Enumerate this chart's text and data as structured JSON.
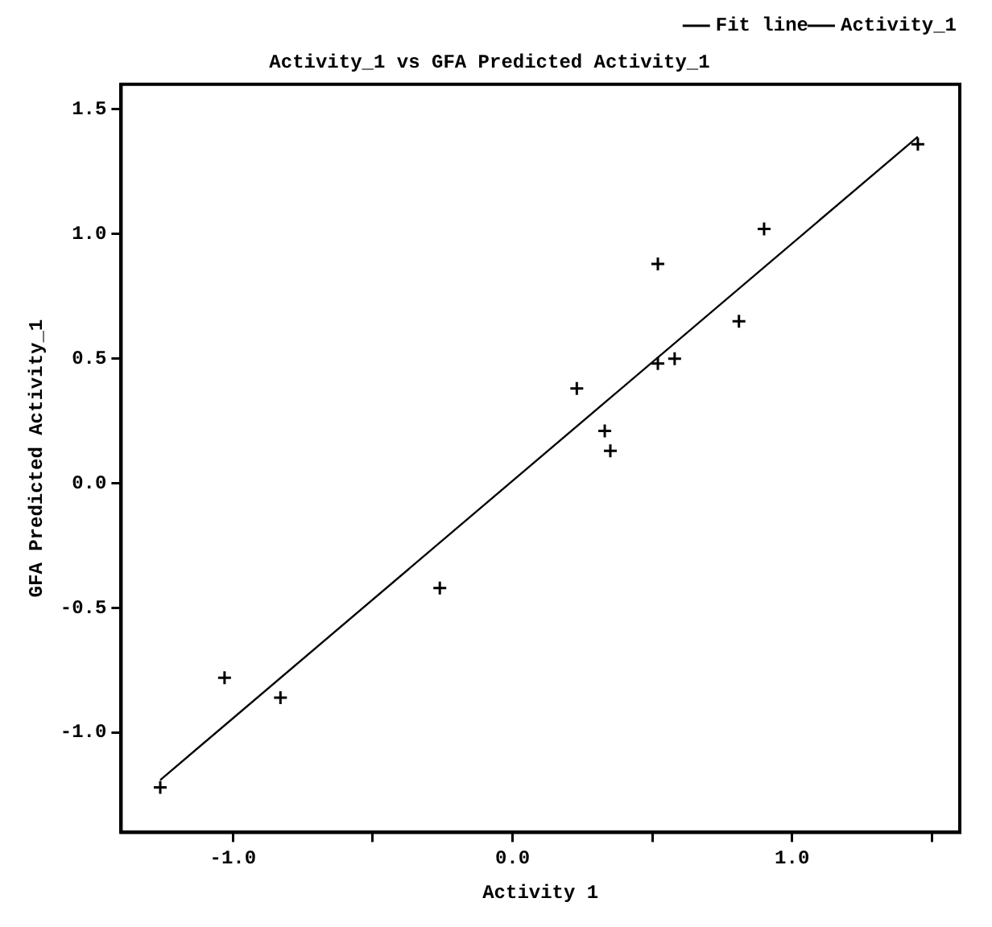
{
  "chart_data": {
    "type": "scatter",
    "title": "Activity_1 vs GFA Predicted Activity_1",
    "xlabel": "Activity 1",
    "ylabel": "GFA Predicted Activity_1",
    "series": [
      {
        "name": "Fit line",
        "type": "line",
        "marker": "none",
        "color": "#000000",
        "x": [
          -1.26,
          1.45
        ],
        "values": [
          -1.19,
          1.39
        ]
      },
      {
        "name": "Activity_1",
        "type": "scatter",
        "marker": "cross",
        "color": "#000000",
        "x": [
          1.45,
          0.9,
          0.52,
          0.81,
          0.52,
          0.58,
          0.23,
          0.33,
          0.35,
          -0.26,
          -1.03,
          -0.83,
          -1.26
        ],
        "values": [
          1.36,
          1.02,
          0.88,
          0.65,
          0.48,
          0.5,
          0.38,
          0.21,
          0.13,
          -0.42,
          -0.78,
          -0.86,
          -1.22
        ]
      }
    ],
    "xlim": [
      -1.4,
      1.6
    ],
    "ylim": [
      -1.4,
      1.6
    ],
    "xticks": [
      {
        "value": -1,
        "label": "-1.0"
      },
      {
        "value": -0.5,
        "label": null
      },
      {
        "value": 0,
        "label": "0.0"
      },
      {
        "value": 0.5,
        "label": null
      },
      {
        "value": 1,
        "label": "1.0"
      },
      {
        "value": 1.5,
        "label": null
      }
    ],
    "yticks": [
      {
        "value": -1,
        "label": "-1.0"
      },
      {
        "value": -0.5,
        "label": "-0.5"
      },
      {
        "value": 0,
        "label": "0.0"
      },
      {
        "value": 0.5,
        "label": "0.5"
      },
      {
        "value": 1,
        "label": "1.0"
      },
      {
        "value": 1.5,
        "label": "1.5"
      }
    ],
    "legend": "top right"
  }
}
